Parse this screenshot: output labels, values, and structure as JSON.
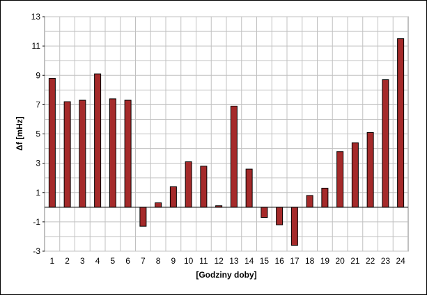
{
  "chart_data": {
    "type": "bar",
    "categories": [
      "1",
      "2",
      "3",
      "4",
      "5",
      "6",
      "7",
      "8",
      "9",
      "10",
      "11",
      "12",
      "13",
      "14",
      "15",
      "16",
      "17",
      "18",
      "19",
      "20",
      "21",
      "22",
      "23",
      "24"
    ],
    "values": [
      8.8,
      7.2,
      7.3,
      9.1,
      7.4,
      7.3,
      -1.3,
      0.3,
      1.4,
      3.1,
      2.8,
      0.1,
      6.9,
      2.6,
      -0.7,
      -1.2,
      -2.6,
      0.8,
      1.3,
      3.8,
      4.4,
      5.1,
      8.7,
      11.5
    ],
    "title": "",
    "xlabel": "[Godziny doby]",
    "ylabel": "Δf [mHz]",
    "ylim": [
      -3,
      13
    ],
    "yticks": [
      -3,
      -1,
      1,
      3,
      5,
      7,
      9,
      11,
      13
    ],
    "grid": true,
    "colors": {
      "bar_fill": "#A52A2A",
      "bar_stroke": "#000000",
      "grid": "#C0C0C0",
      "axis": "#000000"
    }
  }
}
